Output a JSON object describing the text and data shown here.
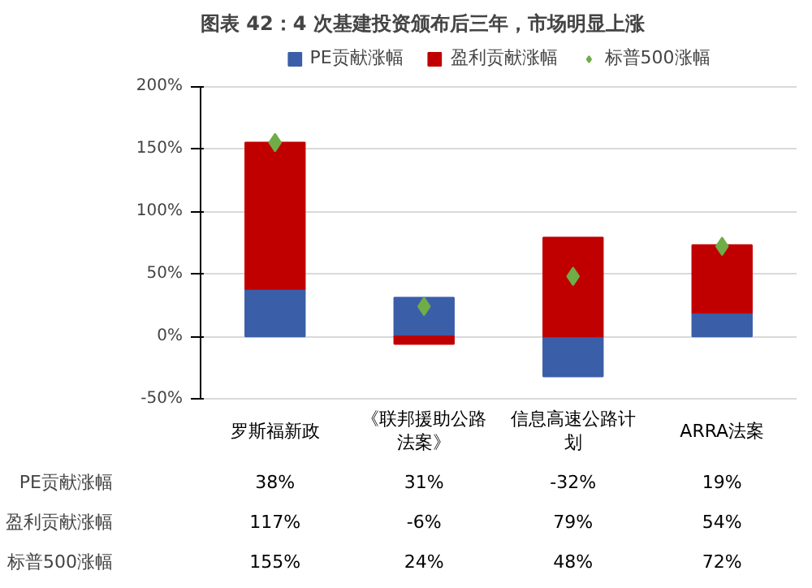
{
  "chart_data": {
    "type": "bar",
    "title": "图表 42：4 次基建投资颁布后三年，市场明显上涨",
    "categories": [
      "罗斯福新政",
      "《联邦援助公路法案》",
      "信息高速公路计划",
      "ARRA法案"
    ],
    "stacked": true,
    "series": [
      {
        "name": "PE贡献涨幅",
        "color": "#3b5ea8",
        "values": [
          38,
          31,
          -32,
          19
        ],
        "value_labels": [
          "38%",
          "31%",
          "-32%",
          "19%"
        ]
      },
      {
        "name": "盈利贡献涨幅",
        "color": "#c00000",
        "values": [
          117,
          -6,
          79,
          54
        ],
        "value_labels": [
          "117%",
          "-6%",
          "79%",
          "54%"
        ]
      },
      {
        "name": "标普500涨幅",
        "type": "scatter",
        "marker": "diamond",
        "color": "#70ad47",
        "values": [
          155,
          24,
          48,
          72
        ],
        "value_labels": [
          "155%",
          "24%",
          "48%",
          "72%"
        ]
      }
    ],
    "ylim": [
      -50,
      200
    ],
    "yticks": [
      {
        "value": -50,
        "label": "-50%"
      },
      {
        "value": 0,
        "label": "0%"
      },
      {
        "value": 50,
        "label": "50%"
      },
      {
        "value": 100,
        "label": "100%"
      },
      {
        "value": 150,
        "label": "150%"
      },
      {
        "value": 200,
        "label": "200%"
      }
    ],
    "grid": "y",
    "legend": "top"
  }
}
